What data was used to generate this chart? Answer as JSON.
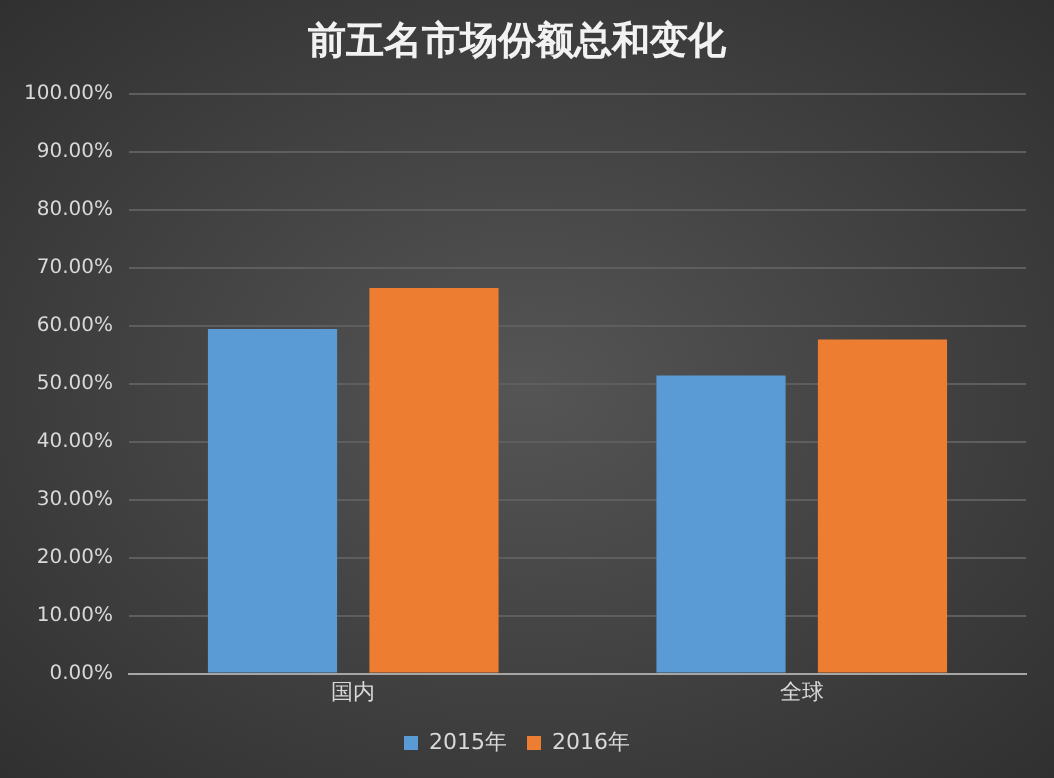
{
  "chart_data": {
    "type": "bar",
    "title": "前五名市场份额总和变化",
    "categories": [
      "国内",
      "全球"
    ],
    "series": [
      {
        "name": "2015年",
        "color": "#5b9bd5",
        "values": [
          59.4,
          51.4
        ]
      },
      {
        "name": "2016年",
        "color": "#ed7d31",
        "values": [
          66.5,
          57.6
        ]
      }
    ],
    "ylim": [
      0,
      100
    ],
    "yticks": [
      {
        "value": 0,
        "label": "0.00%"
      },
      {
        "value": 10,
        "label": "10.00%"
      },
      {
        "value": 20,
        "label": "20.00%"
      },
      {
        "value": 30,
        "label": "30.00%"
      },
      {
        "value": 40,
        "label": "40.00%"
      },
      {
        "value": 50,
        "label": "50.00%"
      },
      {
        "value": 60,
        "label": "60.00%"
      },
      {
        "value": 70,
        "label": "70.00%"
      },
      {
        "value": 80,
        "label": "80.00%"
      },
      {
        "value": 90,
        "label": "90.00%"
      },
      {
        "value": 100,
        "label": "100.00%"
      }
    ],
    "grid": "y",
    "legend": "bottom"
  }
}
